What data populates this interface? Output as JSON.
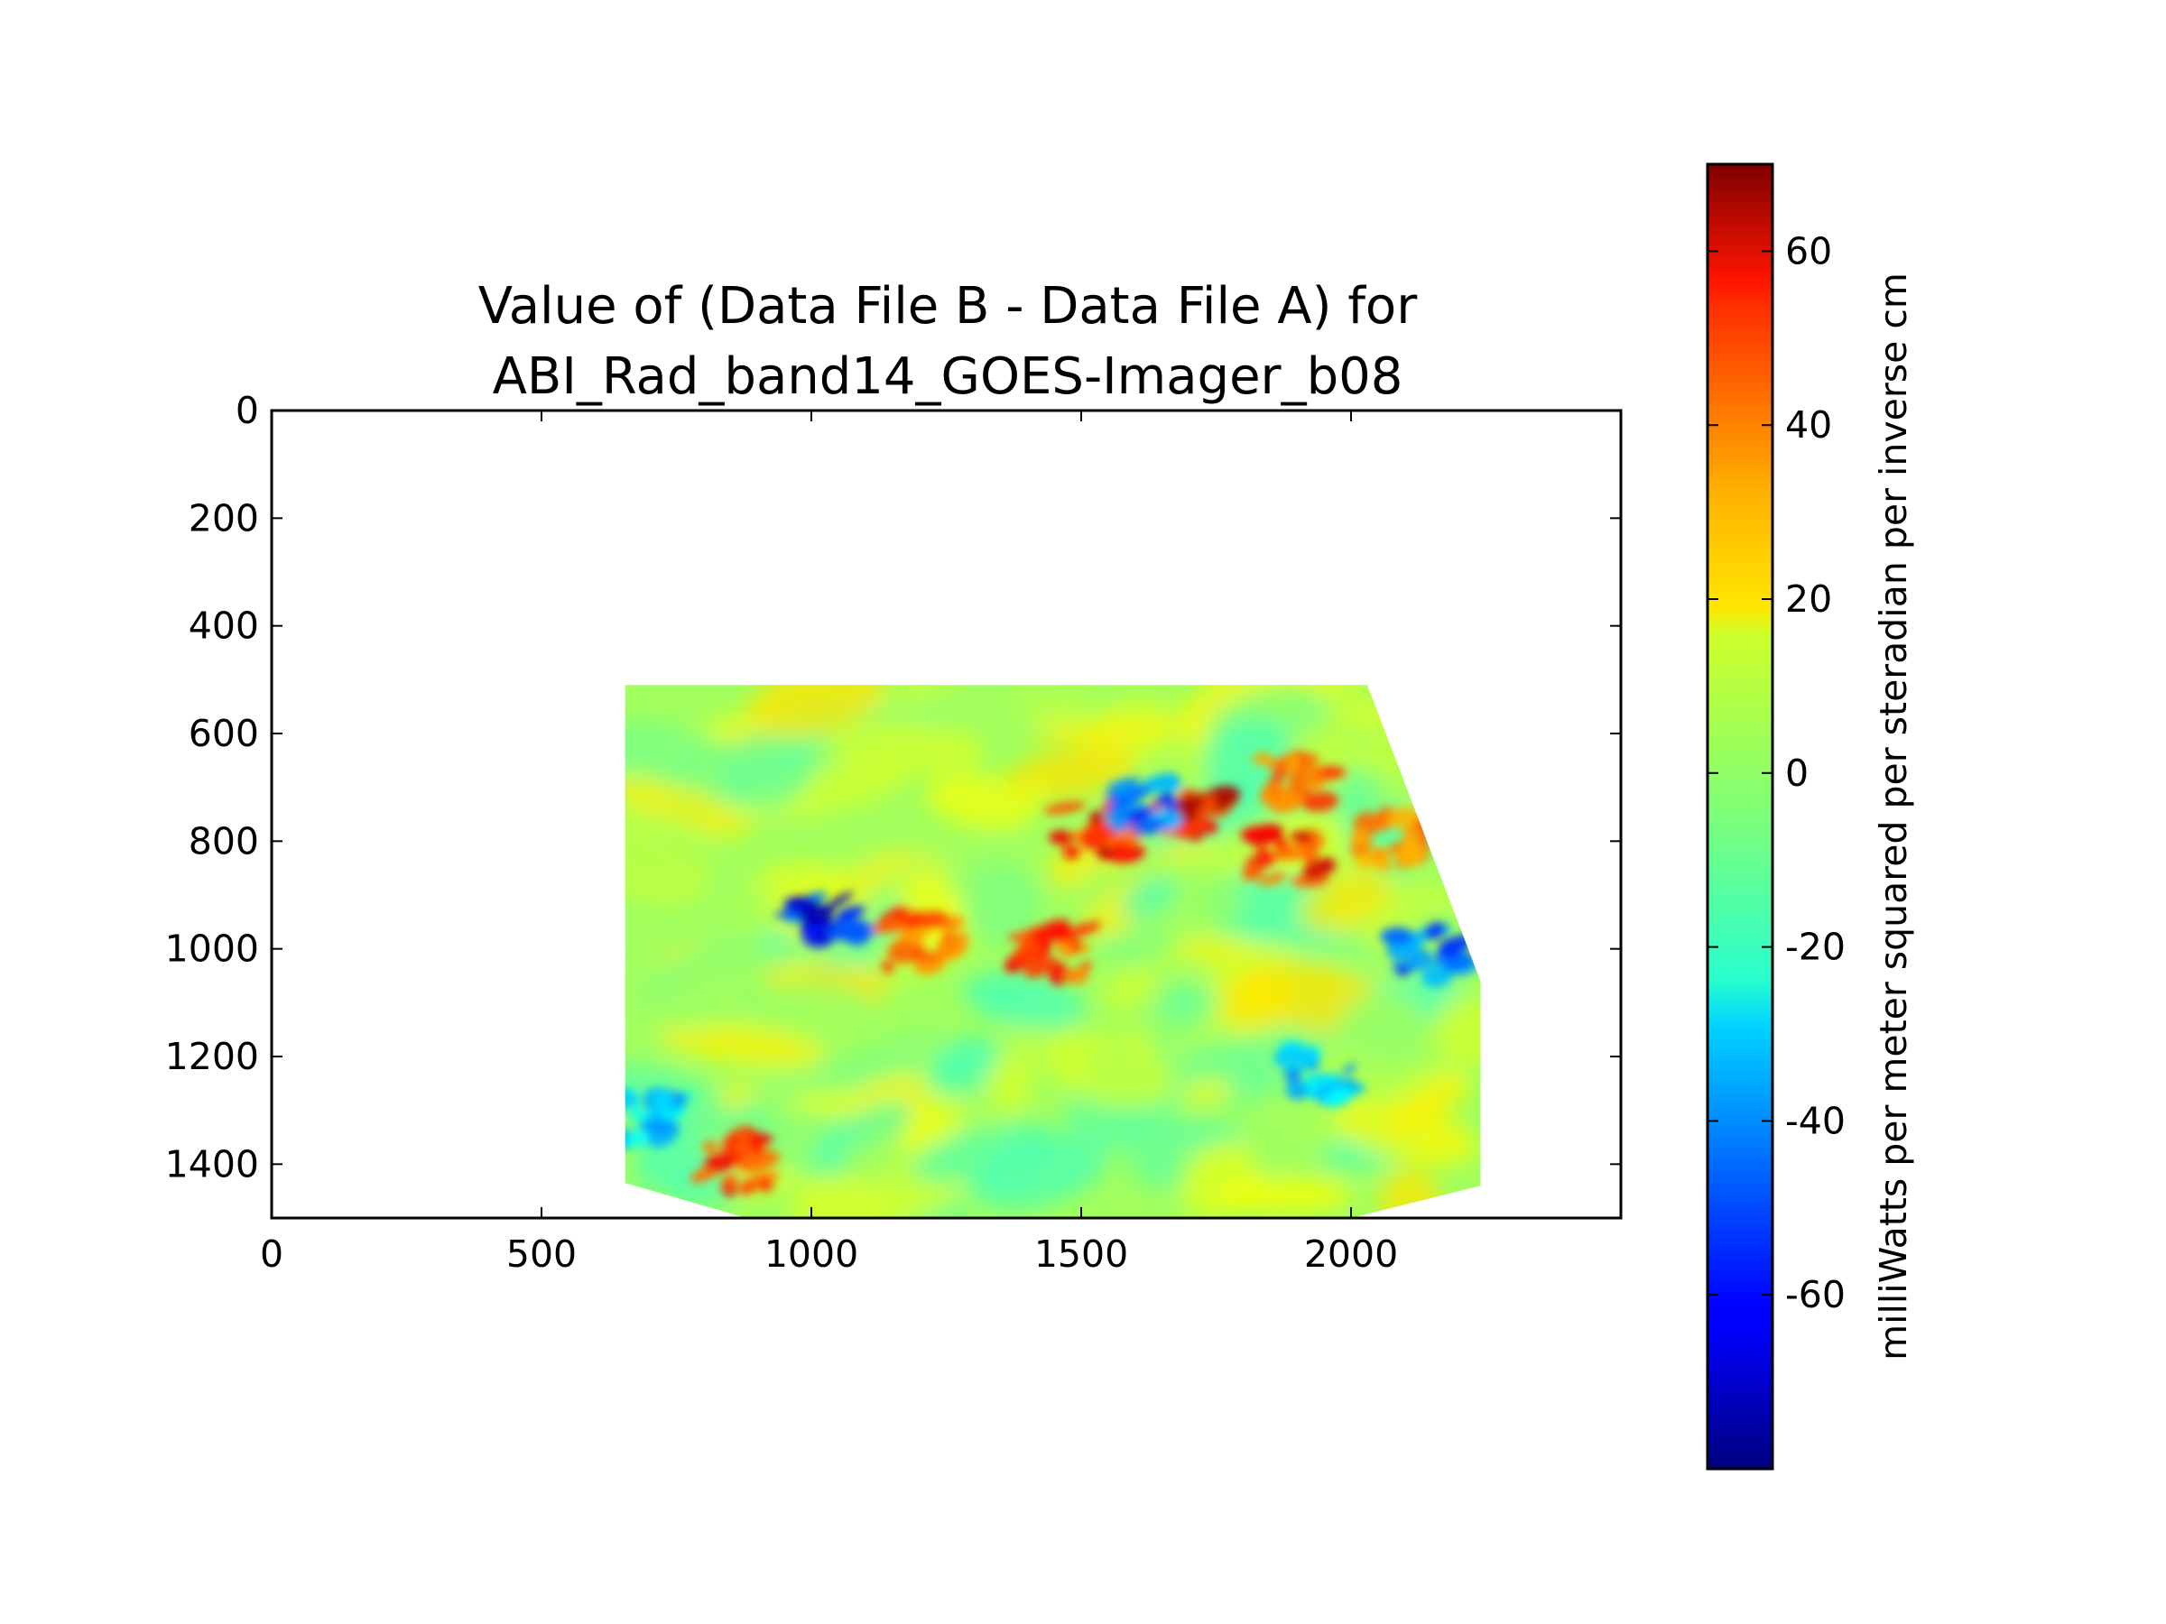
{
  "chart_data": {
    "type": "heatmap",
    "title_lines": [
      "Value of (Data File B - Data File A) for",
      "ABI_Rad_band14_GOES-Imager_b08"
    ],
    "xlim": [
      0,
      2500
    ],
    "ylim": [
      0,
      1500
    ],
    "y_inverted": true,
    "x_ticks": [
      0,
      500,
      1000,
      1500,
      2000
    ],
    "x_tick_labels": [
      "0",
      "500",
      "1000",
      "1500",
      "2000"
    ],
    "y_ticks": [
      0,
      200,
      400,
      600,
      800,
      1000,
      1200,
      1400
    ],
    "y_tick_labels": [
      "0",
      "200",
      "400",
      "600",
      "800",
      "1000",
      "1200",
      "1400"
    ],
    "colormap": "jet",
    "colorbar": {
      "range": [
        -80,
        70
      ],
      "ticks": [
        60,
        40,
        20,
        0,
        -20,
        -40,
        -60
      ],
      "tick_labels": [
        "60",
        "40",
        "20",
        "0",
        "-20",
        "-40",
        "-60"
      ],
      "label": "milliWatts per meter squared per steradian per inverse cm",
      "placement": "right"
    },
    "data_region_outline": [
      [
        655,
        510
      ],
      [
        2030,
        510
      ],
      [
        2240,
        1060
      ],
      [
        2240,
        1440
      ],
      [
        2000,
        1500
      ],
      [
        880,
        1500
      ],
      [
        655,
        1435
      ]
    ],
    "background_value": 0,
    "features": [
      {
        "kind": "positive",
        "center": [
          1520,
          780
        ],
        "value": 60
      },
      {
        "kind": "positive",
        "center": [
          1700,
          740
        ],
        "value": 62
      },
      {
        "kind": "positive",
        "center": [
          1450,
          1010
        ],
        "value": 50
      },
      {
        "kind": "positive",
        "center": [
          1880,
          830
        ],
        "value": 55
      },
      {
        "kind": "positive",
        "center": [
          2070,
          800
        ],
        "value": 40
      },
      {
        "kind": "positive",
        "center": [
          1900,
          690
        ],
        "value": 42
      },
      {
        "kind": "positive",
        "center": [
          855,
          1400
        ],
        "value": 55
      },
      {
        "kind": "positive",
        "center": [
          1200,
          990
        ],
        "value": 45
      },
      {
        "kind": "negative",
        "center": [
          1030,
          935
        ],
        "value": -70
      },
      {
        "kind": "negative",
        "center": [
          2150,
          1010
        ],
        "value": -60
      },
      {
        "kind": "negative",
        "center": [
          1620,
          730
        ],
        "value": -55
      },
      {
        "kind": "negative",
        "center": [
          1950,
          1230
        ],
        "value": -40
      },
      {
        "kind": "negative",
        "center": [
          690,
          1320
        ],
        "value": -38
      }
    ],
    "colors": {
      "axes": "#000000",
      "background": "#ffffff"
    }
  }
}
